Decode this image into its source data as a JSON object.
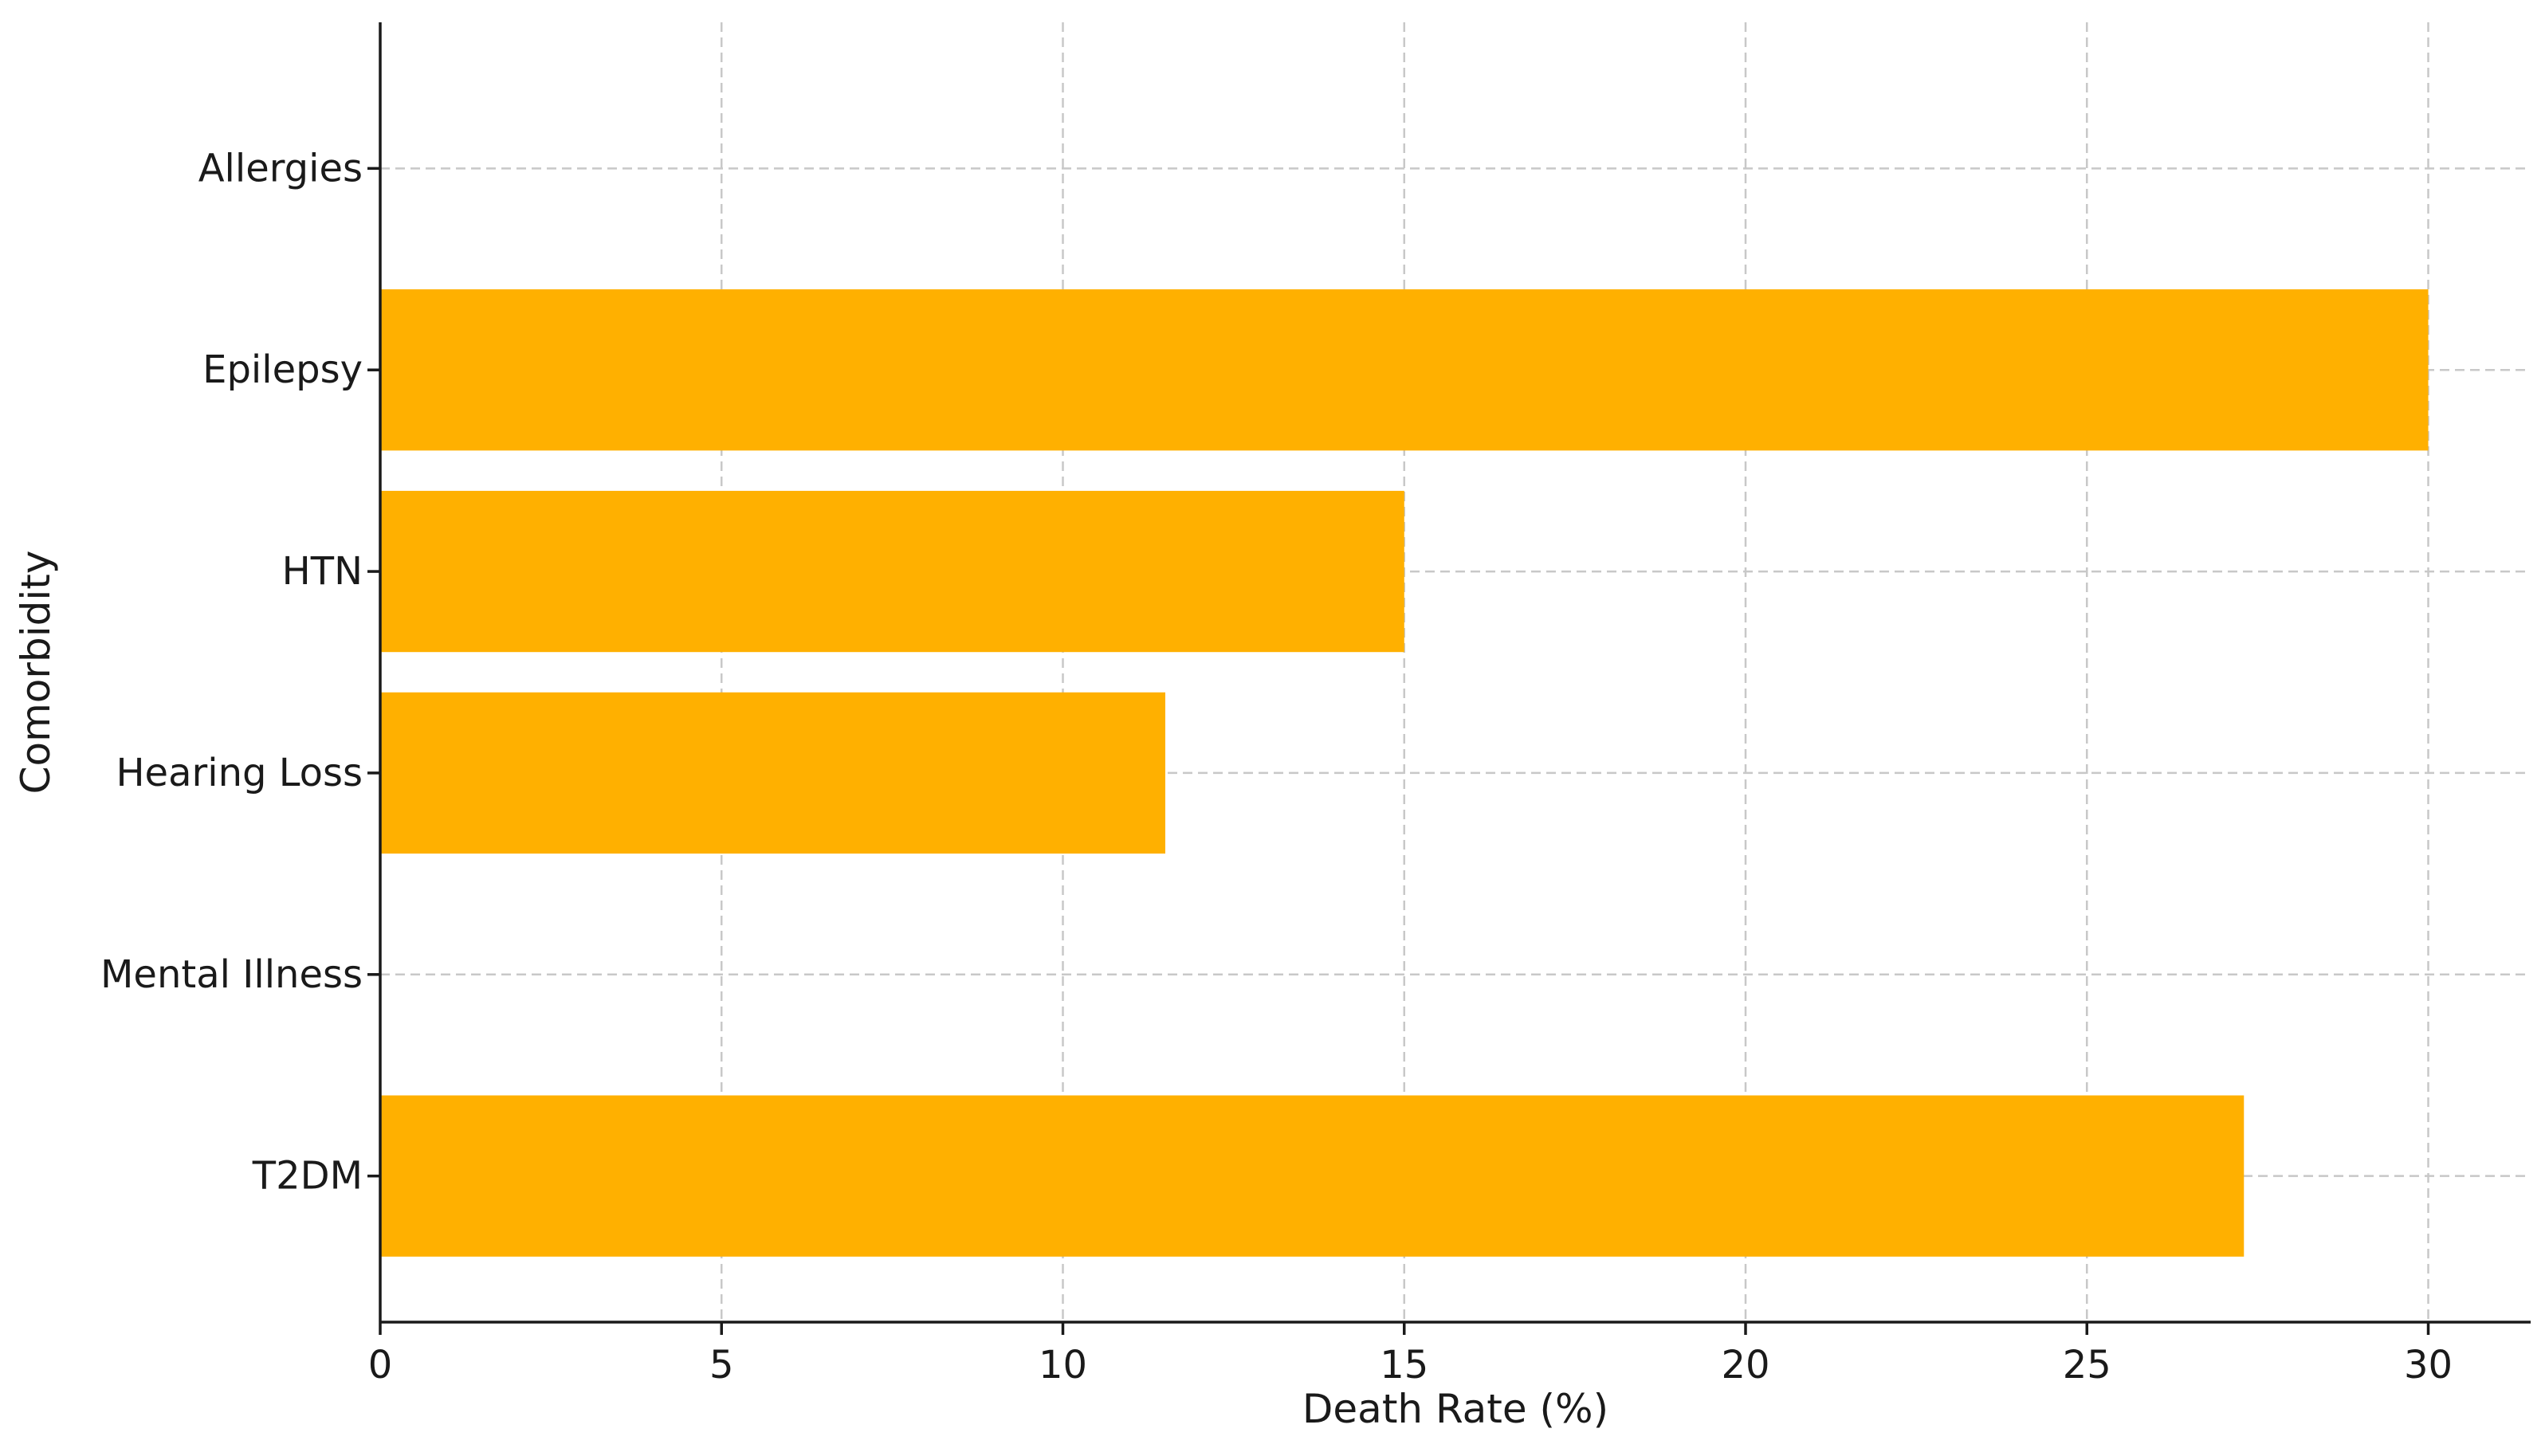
{
  "chart_data": {
    "type": "bar",
    "orientation": "horizontal",
    "title": "",
    "xlabel": "Death Rate (%)",
    "ylabel": "Comorbidity",
    "categories": [
      "Allergies",
      "Epilepsy",
      "HTN",
      "Hearing Loss",
      "Mental Illness",
      "T2DM"
    ],
    "values": [
      0,
      30.0,
      15.0,
      11.5,
      0,
      27.3
    ],
    "xlim": [
      0,
      31.5
    ],
    "xticks": [
      0,
      5,
      10,
      15,
      20,
      25,
      30
    ],
    "grid": true,
    "bar_color": "#FFB000",
    "legend": "none"
  }
}
